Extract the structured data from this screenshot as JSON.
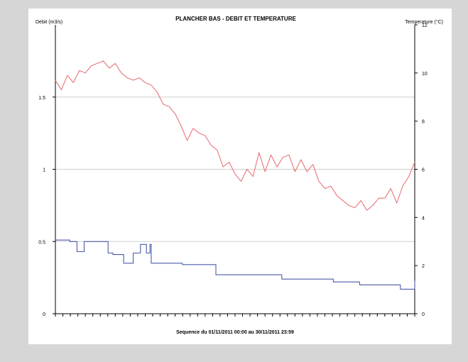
{
  "chart_data": {
    "type": "line",
    "title": "PLANCHER BAS - DEBIT ET TEMPERATURE",
    "ylabel_left": "Debit (m3/s)",
    "ylabel_right": "Temperature (°C)",
    "xlabel": "Sequence du  01/11/2011 00:00  au  30/11/2011 23:59",
    "y_left": {
      "lim": [
        0,
        2
      ],
      "ticks": [
        0,
        0.5,
        1,
        1.5
      ],
      "tick_labels": [
        "0",
        "0.5",
        "1",
        "1.5"
      ]
    },
    "y_right": {
      "lim": [
        0,
        12
      ],
      "ticks": [
        0,
        2,
        4,
        6,
        8,
        10,
        12
      ],
      "tick_labels": [
        "0",
        "2",
        "4",
        "6",
        "8",
        "10",
        "12"
      ]
    },
    "x": {
      "lim": [
        0,
        30
      ],
      "tick_count": 48
    },
    "grid": {
      "horizontal": [
        0.5,
        1,
        1.5
      ],
      "vertical": false
    },
    "colors": {
      "temperature": "#e8747a",
      "debit": "#4a5aa8",
      "grid": "#cfcfcf",
      "axis": "#000000",
      "background": "#d6d6d6"
    },
    "series": [
      {
        "key": "temperature",
        "axis": "right",
        "x": [
          0,
          0.5,
          1,
          1.5,
          2,
          2.5,
          3,
          3.5,
          4,
          4.5,
          5,
          5.5,
          6,
          6.5,
          7,
          7.5,
          8,
          8.5,
          9,
          9.5,
          10,
          10.5,
          11,
          11.5,
          12,
          12.5,
          13,
          13.5,
          14,
          14.5,
          15,
          15.5,
          16,
          16.5,
          17,
          17.5,
          18,
          18.5,
          19,
          19.5,
          20,
          20.5,
          21,
          21.5,
          22,
          22.5,
          23,
          23.5,
          24,
          24.5,
          25,
          25.5,
          26,
          26.5,
          27,
          27.5,
          28,
          28.5,
          29,
          29.5,
          30
        ],
        "values": [
          9.7,
          9.3,
          9.9,
          9.6,
          10.1,
          10.0,
          10.3,
          10.4,
          10.5,
          10.2,
          10.4,
          10.0,
          9.8,
          9.7,
          9.8,
          9.6,
          9.5,
          9.2,
          8.7,
          8.6,
          8.3,
          7.8,
          7.2,
          7.7,
          7.5,
          7.4,
          7.0,
          6.8,
          6.1,
          6.3,
          5.8,
          5.5,
          6.0,
          5.7,
          6.7,
          5.9,
          6.6,
          6.1,
          6.5,
          6.6,
          5.9,
          6.4,
          5.9,
          6.2,
          5.5,
          5.2,
          5.3,
          4.9,
          4.7,
          4.5,
          4.4,
          4.7,
          4.3,
          4.5,
          4.8,
          4.8,
          5.2,
          4.6,
          5.3,
          5.7,
          6.3
        ]
      },
      {
        "key": "debit",
        "axis": "left",
        "step": true,
        "x": [
          0,
          1.2,
          1.8,
          2.4,
          4.4,
          4.8,
          5.7,
          6.5,
          7.1,
          7.6,
          7.9,
          8.0,
          9.0,
          10.6,
          13.4,
          18.2,
          18.9,
          23.2,
          25.4,
          27.0,
          28.8,
          30
        ],
        "values": [
          0.51,
          0.5,
          0.43,
          0.5,
          0.42,
          0.41,
          0.35,
          0.42,
          0.48,
          0.42,
          0.48,
          0.35,
          0.35,
          0.34,
          0.27,
          0.27,
          0.24,
          0.22,
          0.2,
          0.2,
          0.17,
          0.23
        ]
      }
    ]
  }
}
